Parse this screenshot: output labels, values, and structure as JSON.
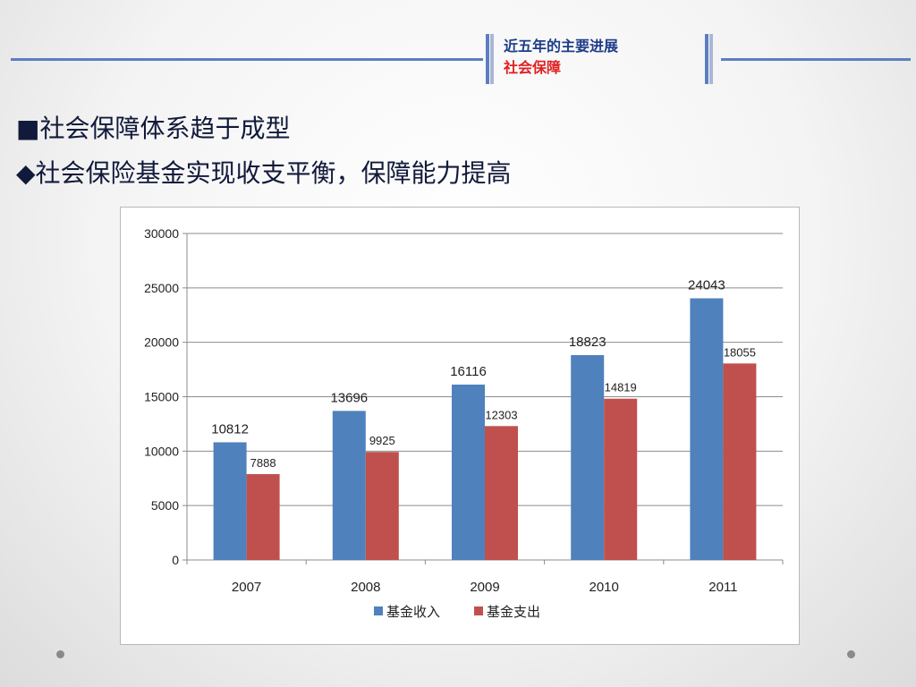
{
  "header": {
    "title": "近五年的主要进展",
    "subtitle": "社会保障"
  },
  "bullets": [
    "■社会保障体系趋于成型",
    "◆社会保险基金实现收支平衡，保障能力提高"
  ],
  "chart_data": {
    "type": "bar",
    "categories": [
      "2007",
      "2008",
      "2009",
      "2010",
      "2011"
    ],
    "series": [
      {
        "name": "基金收入",
        "values": [
          10812,
          13696,
          16116,
          18823,
          24043
        ],
        "color": "#4f81bd"
      },
      {
        "name": "基金支出",
        "values": [
          7888,
          9925,
          12303,
          14819,
          18055
        ],
        "color": "#c0504d"
      }
    ],
    "yticks": [
      "0",
      "5000",
      "10000",
      "15000",
      "20000",
      "25000",
      "30000"
    ],
    "ylim": [
      0,
      30000
    ],
    "grid": true,
    "legend": "bottom",
    "data_labels": true
  }
}
